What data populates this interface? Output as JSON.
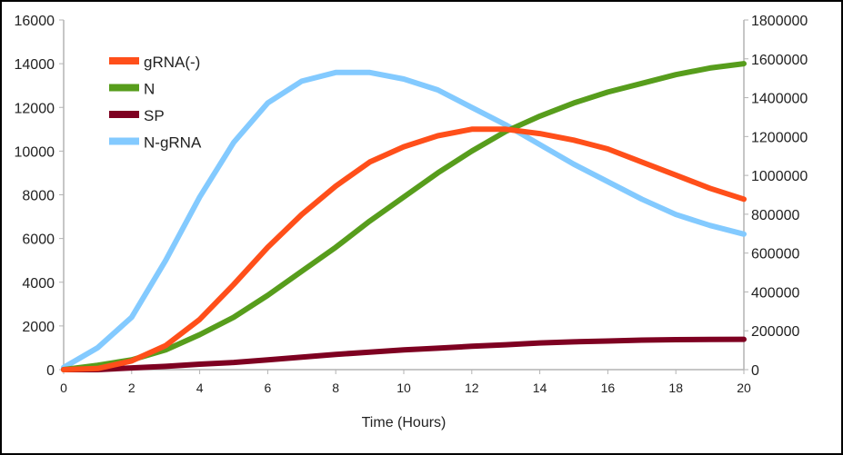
{
  "chart_data": {
    "type": "line",
    "xlabel": "Time (Hours)",
    "ylabel": "",
    "y2label": "",
    "xlim": [
      0,
      20
    ],
    "ylim": [
      0,
      16000
    ],
    "y2lim": [
      0,
      1800000
    ],
    "x_ticks": [
      "0",
      "2",
      "4",
      "6",
      "8",
      "10",
      "12",
      "14",
      "16",
      "18",
      "20"
    ],
    "y_ticks": [
      "0",
      "2000",
      "4000",
      "6000",
      "8000",
      "10000",
      "12000",
      "14000",
      "16000"
    ],
    "y2_ticks": [
      "0",
      "200000",
      "400000",
      "600000",
      "800000",
      "1000000",
      "1200000",
      "1400000",
      "1600000",
      "1800000"
    ],
    "grid": false,
    "legend_position": "top-left",
    "x": [
      0,
      1,
      2,
      3,
      4,
      5,
      6,
      7,
      8,
      9,
      10,
      11,
      12,
      13,
      14,
      15,
      16,
      17,
      18,
      19,
      20
    ],
    "series": [
      {
        "name": "gRNA(-)",
        "color": "#ff4f1a",
        "values": [
          0,
          50,
          400,
          1100,
          2300,
          3900,
          5600,
          7100,
          8400,
          9500,
          10200,
          10700,
          11000,
          11000,
          10800,
          10500,
          10100,
          9500,
          8900,
          8300,
          7800
        ]
      },
      {
        "name": "N",
        "color": "#579d1c",
        "values": [
          0,
          200,
          450,
          900,
          1600,
          2400,
          3400,
          4500,
          5600,
          6800,
          7900,
          9000,
          10000,
          10900,
          11600,
          12200,
          12700,
          13100,
          13500,
          13800,
          14000
        ]
      },
      {
        "name": "SP",
        "color": "#7e0021",
        "values": [
          0,
          0,
          80,
          150,
          250,
          330,
          450,
          570,
          700,
          800,
          900,
          980,
          1070,
          1140,
          1220,
          1270,
          1310,
          1350,
          1370,
          1380,
          1390
        ]
      },
      {
        "name": "N-gRNA",
        "color": "#83caff",
        "values": [
          100,
          1000,
          2400,
          5000,
          7900,
          10400,
          12200,
          13200,
          13600,
          13600,
          13300,
          12800,
          12000,
          11200,
          10300,
          9400,
          8600,
          7800,
          7100,
          6600,
          6200
        ]
      }
    ]
  }
}
